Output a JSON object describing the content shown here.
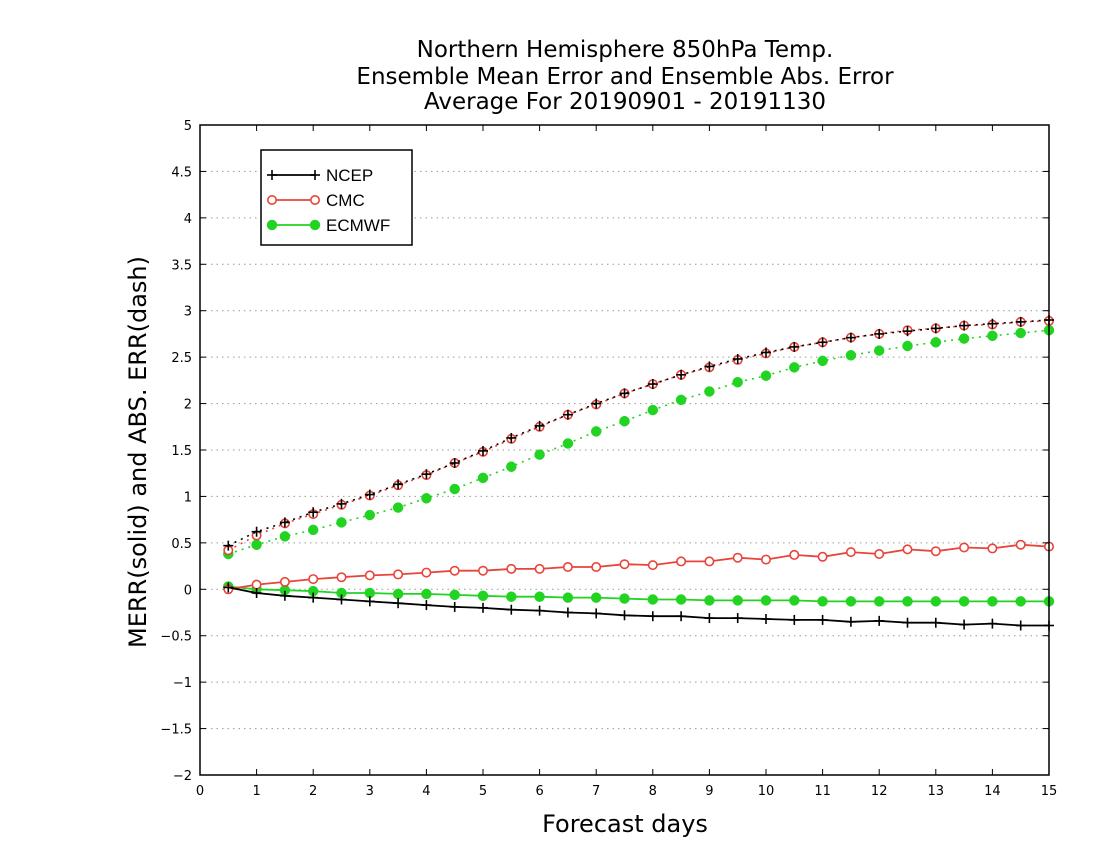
{
  "title": {
    "line1": "Northern Hemisphere 850hPa Temp.",
    "line2": "Ensemble Mean Error and Ensemble Abs. Error",
    "line3": "Average For 20190901 - 20191130"
  },
  "colors": {
    "NCEP": "#000000",
    "CMC": "#e8443a",
    "ECMWF": "#22d322",
    "grid": "#9a9a9a"
  },
  "chart_data": {
    "type": "line",
    "title": "Northern Hemisphere 850hPa Temp. Ensemble Mean Error and Ensemble Abs. Error Average For 20190901 - 20191130",
    "xlabel": "Forecast days",
    "ylabel": "MERR(solid) and ABS. ERR(dash)",
    "xlim": [
      0,
      15
    ],
    "ylim": [
      -2,
      5
    ],
    "xticks": [
      "0",
      "1",
      "2",
      "3",
      "4",
      "5",
      "6",
      "7",
      "8",
      "9",
      "10",
      "11",
      "12",
      "13",
      "14",
      "15"
    ],
    "yticks": [
      "−2",
      "−1.5",
      "−1",
      "−0.5",
      "0",
      "0.5",
      "1",
      "1.5",
      "2",
      "2.5",
      "3",
      "3.5",
      "4",
      "4.5",
      "5"
    ],
    "grid": "horizontal dotted",
    "legend_position": "top-left",
    "x": [
      0.5,
      1,
      1.5,
      2,
      2.5,
      3,
      3.5,
      4,
      4.5,
      5,
      5.5,
      6,
      6.5,
      7,
      7.5,
      8,
      8.5,
      9,
      9.5,
      10,
      10.5,
      11,
      11.5,
      12,
      12.5,
      13,
      13.5,
      14,
      14.5,
      15
    ],
    "series": [
      {
        "name": "NCEP",
        "style": "solid",
        "marker": "plus",
        "values": [
          0.02,
          -0.04,
          -0.07,
          -0.09,
          -0.11,
          -0.13,
          -0.15,
          -0.17,
          -0.19,
          -0.2,
          -0.22,
          -0.23,
          -0.25,
          -0.26,
          -0.28,
          -0.29,
          -0.29,
          -0.31,
          -0.31,
          -0.32,
          -0.33,
          -0.33,
          -0.35,
          -0.34,
          -0.36,
          -0.36,
          -0.38,
          -0.37,
          -0.39,
          -0.39
        ]
      },
      {
        "name": "CMC",
        "style": "solid",
        "marker": "open-circle",
        "values": [
          0.0,
          0.05,
          0.08,
          0.11,
          0.13,
          0.15,
          0.16,
          0.18,
          0.2,
          0.2,
          0.22,
          0.22,
          0.24,
          0.24,
          0.27,
          0.26,
          0.3,
          0.3,
          0.34,
          0.32,
          0.37,
          0.35,
          0.4,
          0.38,
          0.43,
          0.41,
          0.45,
          0.44,
          0.48,
          0.46
        ]
      },
      {
        "name": "ECMWF",
        "style": "solid",
        "marker": "filled-circle",
        "values": [
          0.03,
          0.0,
          -0.01,
          -0.02,
          -0.04,
          -0.04,
          -0.05,
          -0.05,
          -0.06,
          -0.07,
          -0.08,
          -0.08,
          -0.09,
          -0.09,
          -0.1,
          -0.11,
          -0.11,
          -0.12,
          -0.12,
          -0.12,
          -0.12,
          -0.13,
          -0.13,
          -0.13,
          -0.13,
          -0.13,
          -0.13,
          -0.13,
          -0.13,
          -0.13
        ]
      },
      {
        "name": "NCEP",
        "style": "dash",
        "marker": "plus",
        "values": [
          0.47,
          0.62,
          0.72,
          0.83,
          0.92,
          1.02,
          1.13,
          1.24,
          1.36,
          1.49,
          1.63,
          1.76,
          1.88,
          2.0,
          2.11,
          2.21,
          2.31,
          2.4,
          2.48,
          2.55,
          2.61,
          2.66,
          2.71,
          2.75,
          2.78,
          2.81,
          2.84,
          2.86,
          2.88,
          2.9
        ]
      },
      {
        "name": "CMC",
        "style": "dash",
        "marker": "open-circle",
        "values": [
          0.42,
          0.58,
          0.71,
          0.81,
          0.91,
          1.01,
          1.12,
          1.23,
          1.36,
          1.48,
          1.62,
          1.75,
          1.88,
          1.99,
          2.11,
          2.21,
          2.31,
          2.39,
          2.47,
          2.54,
          2.61,
          2.66,
          2.71,
          2.75,
          2.79,
          2.81,
          2.84,
          2.85,
          2.88,
          2.89
        ]
      },
      {
        "name": "ECMWF",
        "style": "dash",
        "marker": "filled-circle",
        "values": [
          0.38,
          0.48,
          0.57,
          0.64,
          0.72,
          0.8,
          0.88,
          0.98,
          1.08,
          1.2,
          1.32,
          1.45,
          1.57,
          1.7,
          1.81,
          1.93,
          2.04,
          2.13,
          2.23,
          2.3,
          2.39,
          2.46,
          2.52,
          2.57,
          2.62,
          2.66,
          2.7,
          2.73,
          2.76,
          2.79
        ]
      }
    ],
    "legend": [
      "NCEP",
      "CMC",
      "ECMWF"
    ]
  }
}
